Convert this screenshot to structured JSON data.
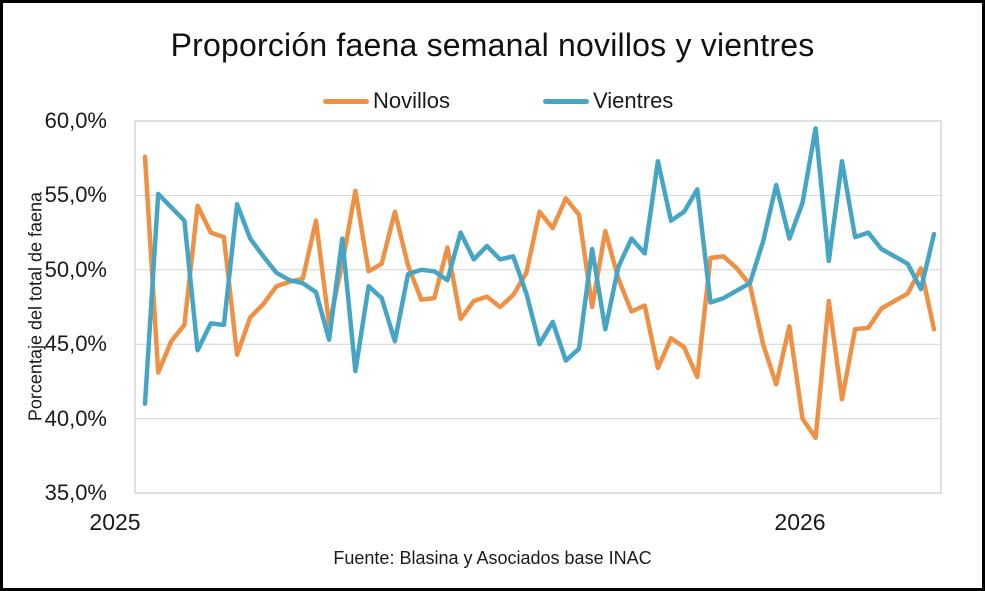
{
  "chart_data": {
    "type": "line",
    "title": "Proporción faena semanal novillos y vientres",
    "y_axis_title": "Porcentaje del total de faena",
    "source_note": "Fuente: Blasina y Asociados base INAC",
    "grid": true,
    "legend_position": "top",
    "ylim": [
      35,
      60
    ],
    "y_ticks": [
      {
        "value": 60,
        "label": "60,0%"
      },
      {
        "value": 55,
        "label": "55,0%"
      },
      {
        "value": 50,
        "label": "50,0%"
      },
      {
        "value": 45,
        "label": "45,0%"
      },
      {
        "value": 40,
        "label": "40,0%"
      },
      {
        "value": 35,
        "label": "35,0%"
      }
    ],
    "x_tick_labels": [
      {
        "label": "2025"
      },
      {
        "label": "2026"
      }
    ],
    "x_unit": "week",
    "grid_color": "#D4D4D4",
    "plot_border_color": "#C2C2C2",
    "text_color": "#1a1a1a",
    "series": [
      {
        "name": "Novillos",
        "color": "#EF9145",
        "values": [
          57.6,
          43.1,
          45.2,
          46.3,
          54.3,
          52.5,
          52.2,
          44.3,
          46.8,
          47.7,
          48.9,
          49.2,
          49.4,
          53.3,
          46.3,
          50.4,
          55.3,
          49.9,
          50.4,
          53.9,
          50.3,
          48.0,
          48.1,
          51.5,
          46.7,
          47.9,
          48.2,
          47.5,
          48.3,
          49.8,
          53.9,
          52.8,
          54.8,
          53.7,
          47.5,
          52.6,
          49.4,
          47.2,
          47.6,
          43.4,
          45.4,
          44.8,
          42.8,
          50.8,
          50.9,
          50.1,
          49.0,
          45.0,
          42.3,
          46.2,
          40.0,
          38.7,
          47.9,
          41.3,
          46.0,
          46.1,
          47.4,
          47.9,
          48.4,
          50.1,
          46.0
        ]
      },
      {
        "name": "Vientres",
        "color": "#46A5C5",
        "values": [
          41.0,
          55.1,
          54.2,
          53.3,
          44.6,
          46.4,
          46.3,
          54.4,
          52.1,
          50.9,
          49.8,
          49.3,
          49.1,
          48.5,
          45.3,
          52.1,
          43.2,
          48.9,
          48.1,
          45.2,
          49.7,
          50.0,
          49.9,
          49.3,
          52.5,
          50.7,
          51.6,
          50.7,
          50.9,
          48.4,
          45.0,
          46.5,
          43.9,
          44.7,
          51.4,
          46.0,
          50.2,
          52.1,
          51.1,
          57.3,
          53.3,
          53.9,
          55.4,
          47.8,
          48.1,
          48.6,
          49.1,
          51.9,
          55.7,
          52.1,
          54.5,
          59.5,
          50.6,
          57.3,
          52.2,
          52.5,
          51.4,
          50.9,
          50.4,
          48.7,
          52.4
        ]
      }
    ]
  }
}
